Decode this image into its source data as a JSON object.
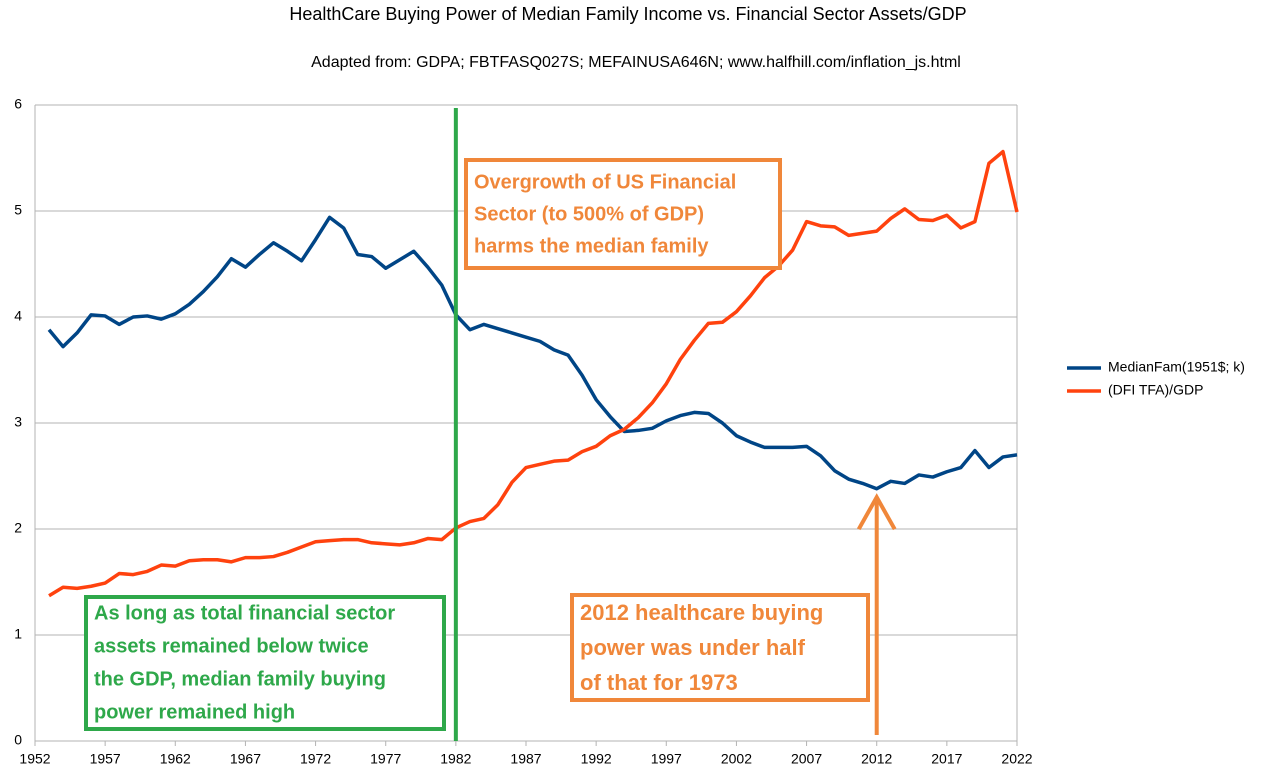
{
  "chart_data": {
    "type": "line",
    "title": "HealthCare Buying Power of Median Family Income vs. Financial Sector Assets/GDP",
    "subtitle": "Adapted from: GDPA; FBTFASQ027S; MEFAINUSA646N; www.halfhill.com/inflation_js.html",
    "x": [
      1953,
      1954,
      1955,
      1956,
      1957,
      1958,
      1959,
      1960,
      1961,
      1962,
      1963,
      1964,
      1965,
      1966,
      1967,
      1968,
      1969,
      1970,
      1971,
      1972,
      1973,
      1974,
      1975,
      1976,
      1977,
      1978,
      1979,
      1980,
      1981,
      1982,
      1983,
      1984,
      1985,
      1986,
      1987,
      1988,
      1989,
      1990,
      1991,
      1992,
      1993,
      1994,
      1995,
      1996,
      1997,
      1998,
      1999,
      2000,
      2001,
      2002,
      2003,
      2004,
      2005,
      2006,
      2007,
      2008,
      2009,
      2010,
      2011,
      2012,
      2013,
      2014,
      2015,
      2016,
      2017,
      2018,
      2019,
      2020,
      2021,
      2022
    ],
    "series": [
      {
        "name": "MedianFam(1951$; k)",
        "color": "#004586",
        "values": [
          3.88,
          3.72,
          3.85,
          4.02,
          4.01,
          3.93,
          4.0,
          4.01,
          3.98,
          4.03,
          4.12,
          4.24,
          4.38,
          4.55,
          4.47,
          4.59,
          4.7,
          4.62,
          4.53,
          4.73,
          4.94,
          4.84,
          4.59,
          4.57,
          4.46,
          4.54,
          4.62,
          4.47,
          4.3,
          4.02,
          3.88,
          3.93,
          3.89,
          3.85,
          3.81,
          3.77,
          3.69,
          3.64,
          3.45,
          3.22,
          3.06,
          2.92,
          2.93,
          2.95,
          3.02,
          3.07,
          3.1,
          3.09,
          3.0,
          2.88,
          2.82,
          2.77,
          2.77,
          2.77,
          2.78,
          2.69,
          2.55,
          2.47,
          2.43,
          2.38,
          2.45,
          2.43,
          2.51,
          2.49,
          2.54,
          2.58,
          2.74,
          2.58,
          2.68,
          2.7
        ]
      },
      {
        "name": "(DFI TFA)/GDP",
        "color": "#ff420e",
        "values": [
          1.37,
          1.45,
          1.44,
          1.46,
          1.49,
          1.58,
          1.57,
          1.6,
          1.66,
          1.65,
          1.7,
          1.71,
          1.71,
          1.69,
          1.73,
          1.73,
          1.74,
          1.78,
          1.83,
          1.88,
          1.89,
          1.9,
          1.9,
          1.87,
          1.86,
          1.85,
          1.87,
          1.91,
          1.9,
          2.01,
          2.07,
          2.1,
          2.23,
          2.44,
          2.58,
          2.61,
          2.64,
          2.65,
          2.73,
          2.78,
          2.88,
          2.94,
          3.05,
          3.19,
          3.37,
          3.6,
          3.78,
          3.94,
          3.95,
          4.05,
          4.2,
          4.37,
          4.48,
          4.63,
          4.9,
          4.86,
          4.85,
          4.77,
          4.79,
          4.81,
          4.93,
          5.02,
          4.92,
          4.91,
          4.96,
          4.84,
          4.9,
          5.45,
          5.56,
          4.99
        ]
      }
    ],
    "xlim": [
      1952,
      2022
    ],
    "xticks": [
      1952,
      1957,
      1962,
      1967,
      1972,
      1977,
      1982,
      1987,
      1992,
      1997,
      2002,
      2007,
      2012,
      2017,
      2022
    ],
    "ylim": [
      0,
      6
    ],
    "yticks": [
      0,
      1,
      2,
      3,
      4,
      5,
      6
    ],
    "grid": true,
    "legend": "right",
    "vline": {
      "x": 1982,
      "color": "#2ea84a"
    },
    "arrow": {
      "x": 2012,
      "y": 2.3,
      "color": "#f0873a"
    },
    "annotations": [
      {
        "lines": [
          "Overgrowth of US Financial",
          "Sector (to 500% of GDP)",
          "harms the median family"
        ],
        "color": "#f0873a"
      },
      {
        "lines": [
          "As long as total financial sector",
          "assets remained below twice",
          "the GDP, median family buying",
          "power remained high"
        ],
        "color": "#2ea84a"
      },
      {
        "lines": [
          "2012 healthcare buying",
          "power was under half",
          "of that for 1973"
        ],
        "color": "#f0873a"
      }
    ]
  }
}
